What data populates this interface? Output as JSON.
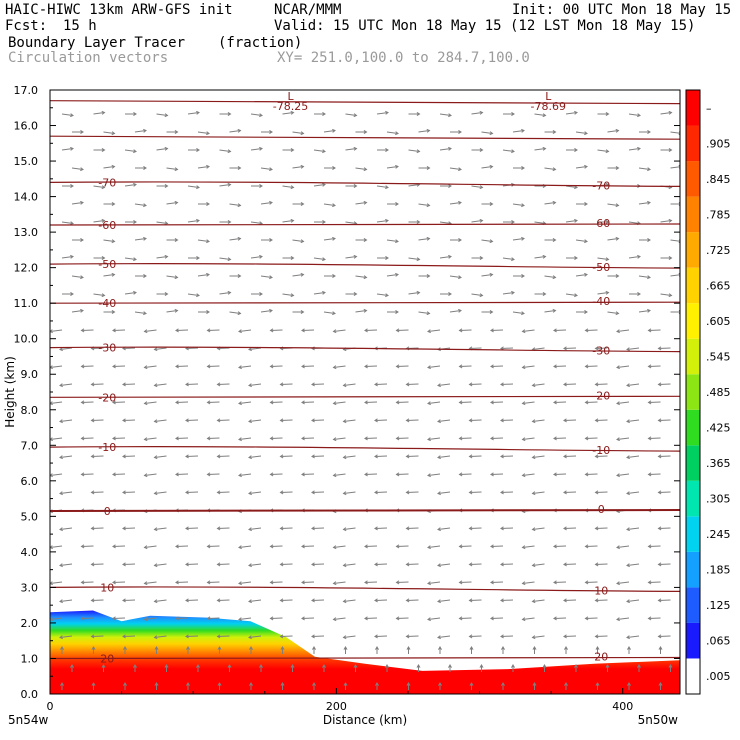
{
  "header": {
    "model": "HAIC-HIWC 13km ARW-GFS init",
    "org": "NCAR/MMM",
    "init": "Init: 00 UTC Mon 18 May 15",
    "fcst_label": "Fcst:",
    "fcst_value": "15 h",
    "valid": "Valid: 15 UTC Mon 18 May 15 (12 LST Mon 18 May 15)",
    "field1": "Boundary Layer Tracer",
    "field1_units": "(fraction)",
    "field2": "Circulation vectors",
    "xsec": "XY= 251.0,100.0 to 284.7,100.0"
  },
  "axes": {
    "ylabel": "Height (km)",
    "xlabel": "Distance (km)",
    "x_left_end": "5n54w",
    "x_right_end": "5n50w",
    "yticks": [
      "0.0",
      "1.0",
      "2.0",
      "3.0",
      "4.0",
      "5.0",
      "6.0",
      "7.0",
      "8.0",
      "9.0",
      "10.0",
      "11.0",
      "12.0",
      "13.0",
      "14.0",
      "15.0",
      "16.0",
      "17.0"
    ],
    "xticks": [
      "0",
      "200",
      "400"
    ]
  },
  "colorbar": {
    "labels": [
      ".005",
      ".065",
      ".125",
      ".185",
      ".245",
      ".305",
      ".365",
      ".425",
      ".485",
      ".545",
      ".605",
      ".665",
      ".725",
      ".785",
      ".845",
      ".905",
      "–"
    ],
    "colors": [
      "#ffffff",
      "#1a1aff",
      "#1f5cff",
      "#14a0ff",
      "#00d2f0",
      "#00e6b0",
      "#00d060",
      "#30dc20",
      "#8ce614",
      "#d2f00a",
      "#fff000",
      "#ffd200",
      "#ffaa00",
      "#ff8200",
      "#ff5a00",
      "#ff2800",
      "#ff0000"
    ]
  },
  "chart_data": {
    "type": "cross-section",
    "x_range_km": [
      0,
      440
    ],
    "y_range_km": [
      0,
      17
    ],
    "temperature_contours": [
      {
        "label": "20",
        "height_km": 1.0
      },
      {
        "label": "10",
        "height_km": 3.0
      },
      {
        "label": "0",
        "height_km": 5.15
      },
      {
        "label": "-10",
        "height_km": 6.95
      },
      {
        "label": "-20",
        "height_km": 8.35
      },
      {
        "label": "-30",
        "height_km": 9.75
      },
      {
        "label": "-40",
        "height_km": 11.0
      },
      {
        "label": "-50",
        "height_km": 12.1
      },
      {
        "label": "-60",
        "height_km": 13.2
      },
      {
        "label": "-70",
        "height_km": 14.4
      }
    ],
    "minima": [
      {
        "label": "L",
        "value": "-78.25",
        "x_km": 168
      },
      {
        "label": "L",
        "value": "-78.69",
        "x_km": 348
      }
    ],
    "tracer_top_km": [
      [
        0,
        2.3
      ],
      [
        30,
        2.35
      ],
      [
        50,
        2.05
      ],
      [
        70,
        2.2
      ],
      [
        110,
        2.15
      ],
      [
        140,
        2.05
      ],
      [
        165,
        1.6
      ],
      [
        185,
        1.05
      ],
      [
        220,
        0.85
      ],
      [
        260,
        0.65
      ],
      [
        320,
        0.7
      ],
      [
        380,
        0.85
      ],
      [
        440,
        0.95
      ]
    ]
  }
}
